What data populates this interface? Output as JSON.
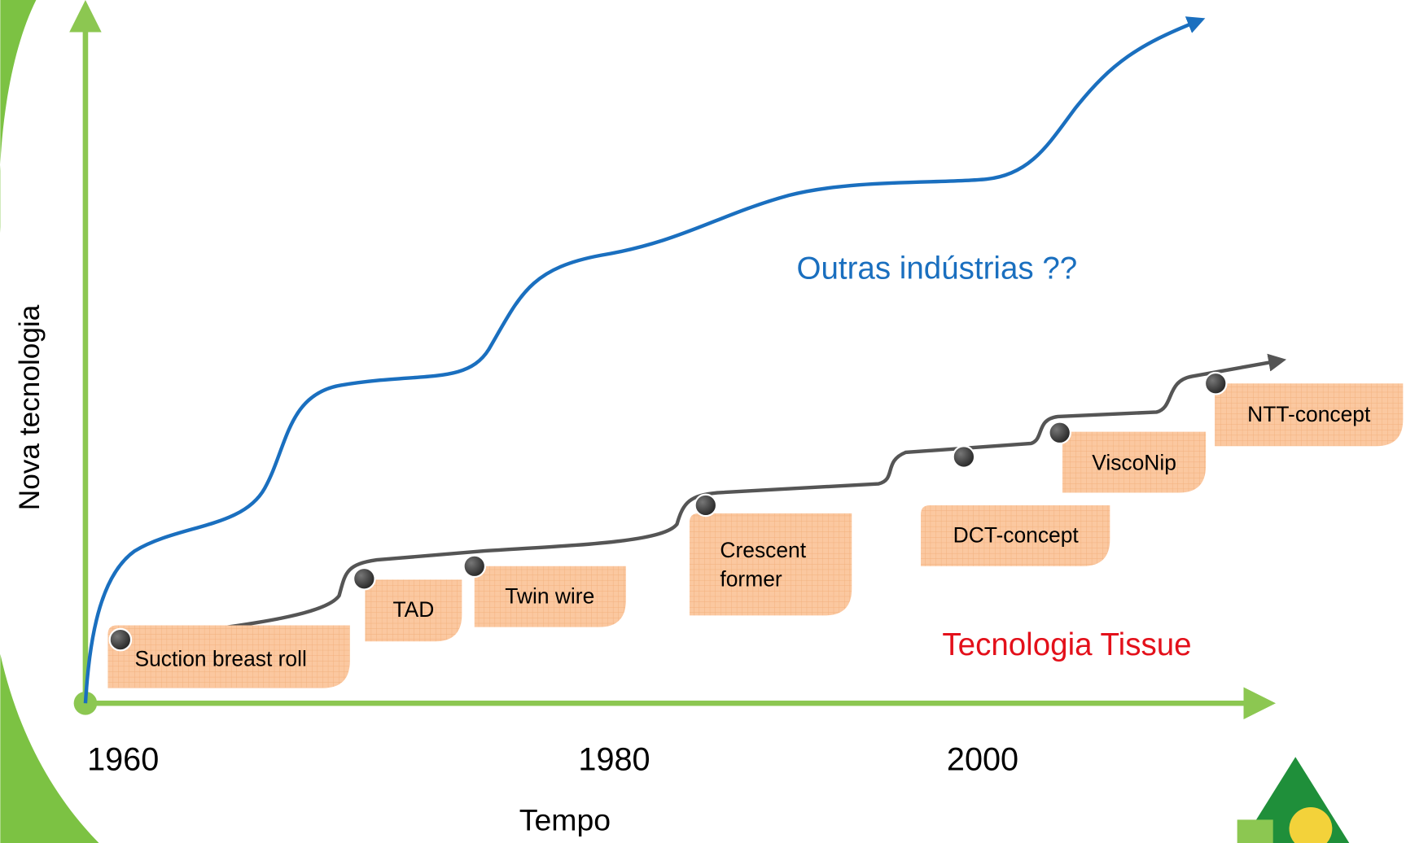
{
  "y_axis_label": "Nova tecnologia",
  "x_axis_label": "Tempo",
  "x_labels": [
    "1960",
    "1980",
    "2000"
  ],
  "curves": [
    {
      "label": "Outras indústrias ??"
    },
    {
      "label": "Tecnologia Tissue"
    }
  ],
  "milestones": [
    {
      "lines": [
        "Suction breast roll"
      ]
    },
    {
      "lines": [
        "TAD"
      ]
    },
    {
      "lines": [
        "Twin wire"
      ]
    },
    {
      "lines": [
        "Crescent",
        "former"
      ]
    },
    {
      "lines": [
        "DCT-concept"
      ]
    },
    {
      "lines": [
        "ViscoNip"
      ]
    },
    {
      "lines": [
        "NTT-concept"
      ]
    }
  ]
}
